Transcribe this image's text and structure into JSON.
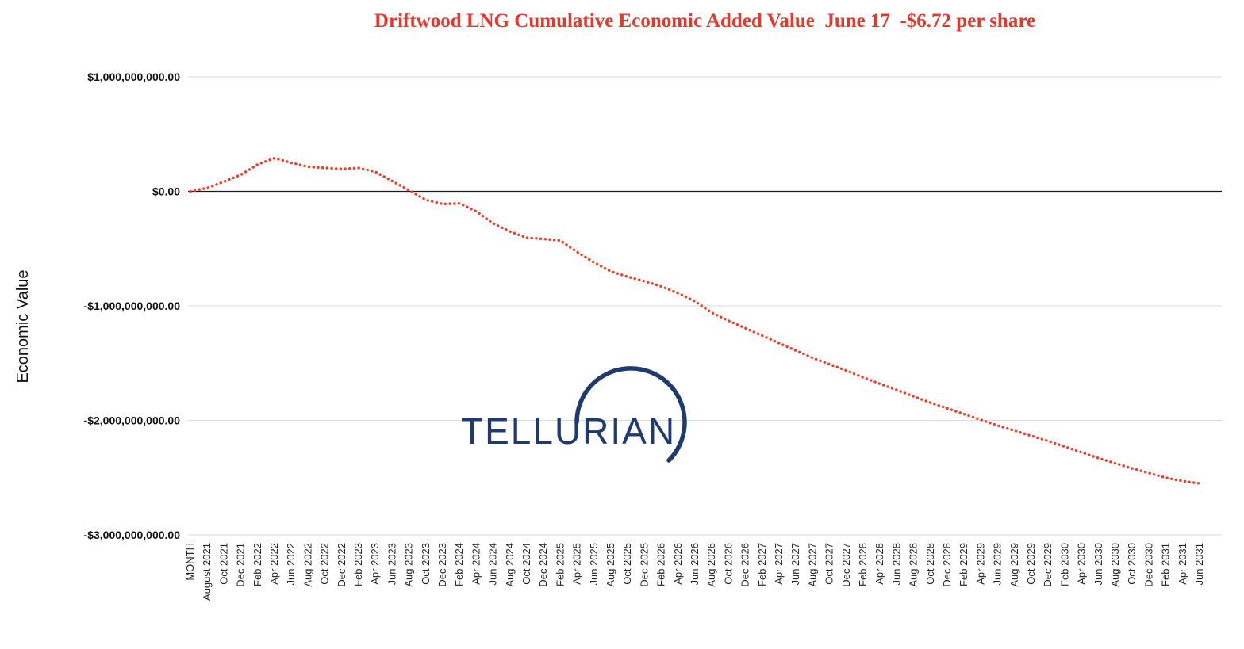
{
  "watermark": {
    "text": "TELLURIAN",
    "color": "#1e3a6e"
  },
  "chart_data": {
    "type": "line",
    "title": "Driftwood LNG Cumulative Economic Added Value  June 17  -$6.72 per share",
    "title_color": "#e8372a",
    "xlabel": "",
    "ylabel": "Economic Value",
    "legend": false,
    "grid": true,
    "line_color": "#f23a25",
    "line_style": "dotted",
    "values_unit": "millions USD",
    "ylim": [
      -3000000000,
      1000000000
    ],
    "y_ticks": [
      {
        "label": "$1,000,000,000.00",
        "value": 1000
      },
      {
        "label": "$0.00",
        "value": 0
      },
      {
        "label": "-$1,000,000,000.00",
        "value": -1000
      },
      {
        "label": "-$2,000,000,000.00",
        "value": -2000
      },
      {
        "label": "-$3,000,000,000.00",
        "value": -3000
      }
    ],
    "categories": [
      "MONTH",
      "August 2021",
      "Oct 2021",
      "Dec 2021",
      "Feb 2022",
      "Apr 2022",
      "Jun 2022",
      "Aug 2022",
      "Oct 2022",
      "Dec 2022",
      "Feb 2023",
      "Apr 2023",
      "Jun 2023",
      "Aug 2023",
      "Oct 2023",
      "Dec 2023",
      "Feb 2024",
      "Apr 2024",
      "Jun 2024",
      "Aug 2024",
      "Oct 2024",
      "Dec 2024",
      "Feb 2025",
      "Apr 2025",
      "Jun 2025",
      "Aug 2025",
      "Oct 2025",
      "Dec 2025",
      "Feb 2026",
      "Apr 2026",
      "Jun 2026",
      "Aug 2026",
      "Oct 2026",
      "Dec 2026",
      "Feb 2027",
      "Apr 2027",
      "Jun 2027",
      "Aug 2027",
      "Oct 2027",
      "Dec 2027",
      "Feb 2028",
      "Apr 2028",
      "Jun 2028",
      "Aug 2028",
      "Oct 2028",
      "Dec 2028",
      "Feb 2029",
      "Apr 2029",
      "Jun 2029",
      "Aug 2029",
      "Oct 2029",
      "Dec 2029",
      "Feb 2030",
      "Apr 2030",
      "Jun 2030",
      "Aug 2030",
      "Oct 2030",
      "Dec 2030",
      "Feb 2031",
      "Apr 2031",
      "Jun 2031"
    ],
    "values": [
      0,
      30,
      85,
      145,
      235,
      290,
      250,
      215,
      205,
      195,
      205,
      170,
      90,
      10,
      -75,
      -110,
      -105,
      -175,
      -280,
      -350,
      -405,
      -415,
      -430,
      -530,
      -620,
      -700,
      -745,
      -785,
      -830,
      -890,
      -960,
      -1060,
      -1130,
      -1195,
      -1260,
      -1325,
      -1390,
      -1455,
      -1510,
      -1565,
      -1625,
      -1680,
      -1735,
      -1790,
      -1845,
      -1895,
      -1945,
      -1995,
      -2045,
      -2090,
      -2135,
      -2180,
      -2230,
      -2280,
      -2330,
      -2375,
      -2420,
      -2460,
      -2500,
      -2530,
      -2550
    ]
  }
}
